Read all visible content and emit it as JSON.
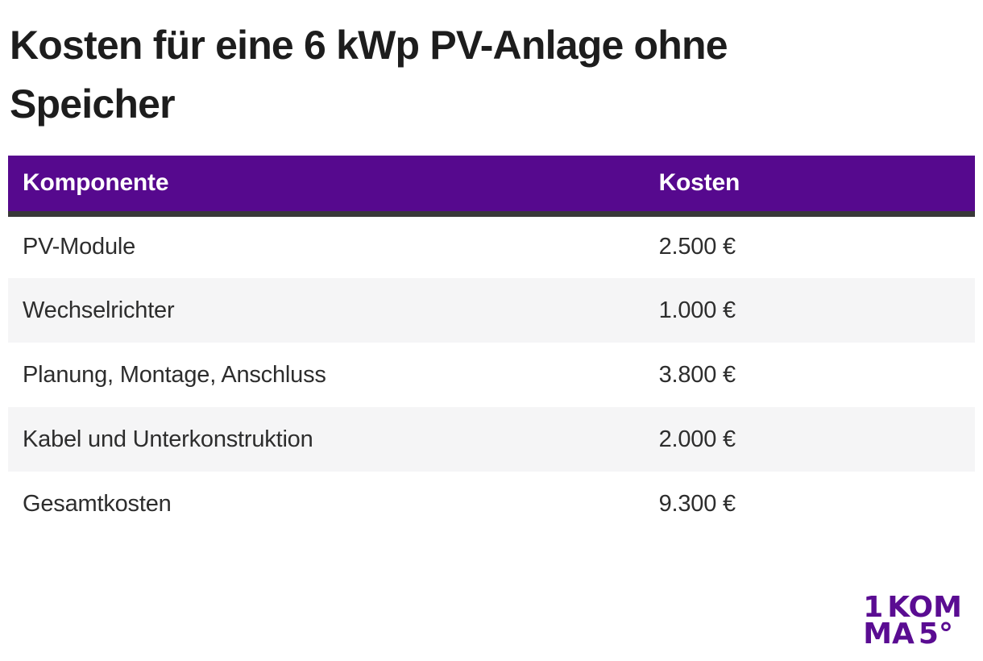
{
  "title": {
    "line1": "Kosten für eine 6 kWp PV-Anlage ohne",
    "line2": "Speicher",
    "full": "Kosten für eine 6 kWp PV-Anlage ohne Speicher"
  },
  "table": {
    "headers": [
      "Komponente",
      "Kosten"
    ],
    "rows": [
      {
        "component": "PV-Module",
        "cost": "2.500 €"
      },
      {
        "component": "Wechselrichter",
        "cost": "1.000 €"
      },
      {
        "component": "Planung, Montage, Anschluss",
        "cost": "3.800 €"
      },
      {
        "component": "Kabel und Unterkonstruktion",
        "cost": "2.000 €"
      },
      {
        "component": "Gesamtkosten",
        "cost": "9.300 €"
      }
    ]
  },
  "logo": {
    "text": "1KOMMA5°",
    "line1_light": "1",
    "line1_bold": "KOM",
    "line2_bold": "MA",
    "line2_light": "5°"
  },
  "colors": {
    "header_purple": "#56098e",
    "logo_purple": "#5a0c92",
    "stripe_gray": "#f5f5f6",
    "divider_dark": "#383838",
    "title_text": "#1d1d1d",
    "body_text": "#2d2d2d"
  },
  "chart_data": {
    "type": "table",
    "title": "Kosten für eine 6 kWp PV-Anlage ohne Speicher",
    "columns": [
      "Komponente",
      "Kosten"
    ],
    "rows": [
      [
        "PV-Module",
        "2.500 €"
      ],
      [
        "Wechselrichter",
        "1.000 €"
      ],
      [
        "Planung, Montage, Anschluss",
        "3.800 €"
      ],
      [
        "Kabel und Unterkonstruktion",
        "2.000 €"
      ],
      [
        "Gesamtkosten",
        "9.300 €"
      ]
    ],
    "values_eur": {
      "PV-Module": 2500,
      "Wechselrichter": 1000,
      "Planung, Montage, Anschluss": 3800,
      "Kabel und Unterkonstruktion": 2000,
      "Gesamtkosten": 9300
    },
    "currency": "EUR",
    "header_style": "purple-background-white-text",
    "striping": "alternating rows light gray (rows 2 and 4)"
  }
}
